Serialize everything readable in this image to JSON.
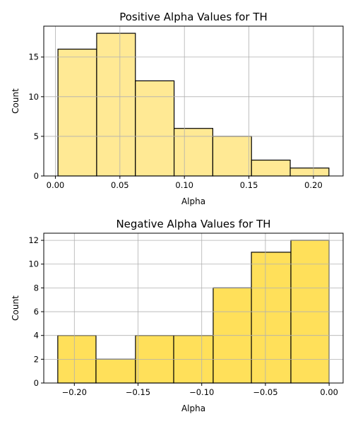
{
  "colors": {
    "positive_bar": "#FFE994",
    "negative_bar": "#FFE05A",
    "edge": "#000000"
  },
  "chart_data": [
    {
      "type": "bar",
      "title": "Positive Alpha Values for TH",
      "xlabel": "Alpha",
      "ylabel": "Count",
      "bin_edges": [
        0.002,
        0.032,
        0.062,
        0.092,
        0.122,
        0.152,
        0.182,
        0.212
      ],
      "values": [
        16,
        18,
        12,
        6,
        5,
        2,
        1
      ],
      "xlim": [
        -0.009,
        0.223
      ],
      "ylim": [
        0,
        18.9
      ],
      "xticks": [
        0.0,
        0.05,
        0.1,
        0.15,
        0.2
      ],
      "xtick_labels": [
        "0.00",
        "0.05",
        "0.10",
        "0.15",
        "0.20"
      ],
      "yticks": [
        0,
        5,
        10,
        15
      ],
      "ytick_labels": [
        "0",
        "5",
        "10",
        "15"
      ],
      "grid": true
    },
    {
      "type": "bar",
      "title": "Negative Alpha Values for TH",
      "xlabel": "Alpha",
      "ylabel": "Count",
      "bin_edges": [
        -0.213,
        -0.183,
        -0.152,
        -0.122,
        -0.091,
        -0.061,
        -0.03,
        0.0
      ],
      "values": [
        4,
        2,
        4,
        4,
        8,
        11,
        12
      ],
      "xlim": [
        -0.224,
        0.011
      ],
      "ylim": [
        0,
        12.6
      ],
      "xticks": [
        -0.2,
        -0.15,
        -0.1,
        -0.05,
        0.0
      ],
      "xtick_labels": [
        "−0.20",
        "−0.15",
        "−0.10",
        "−0.05",
        "0.00"
      ],
      "yticks": [
        0,
        2,
        4,
        6,
        8,
        10,
        12
      ],
      "ytick_labels": [
        "0",
        "2",
        "4",
        "6",
        "8",
        "10",
        "12"
      ],
      "grid": true
    }
  ]
}
